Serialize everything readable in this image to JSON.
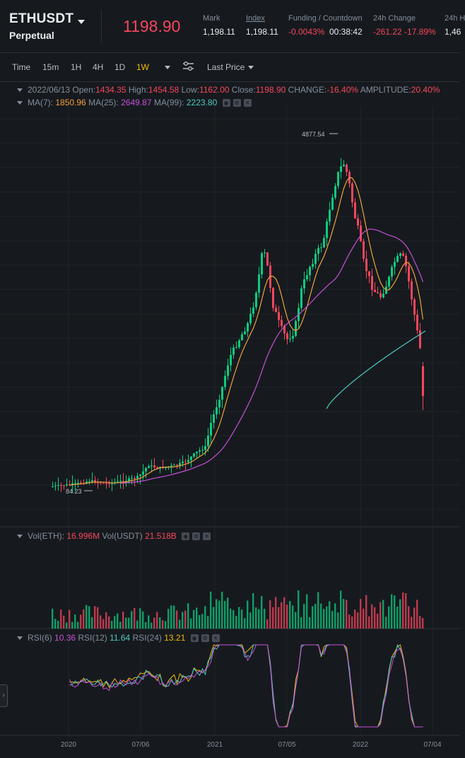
{
  "header": {
    "symbol": "ETHUSDT",
    "contract_type": "Perpetual",
    "last_price": "1198.90",
    "mark_label": "Mark",
    "mark_value": "1,198.11",
    "index_label": "Index",
    "index_value": "1,198.11",
    "funding_label": "Funding / Countdown",
    "funding_rate": "-0.0043%",
    "countdown": "00:38:42",
    "change_label": "24h Change",
    "change_value": "-261.22 -17.89%",
    "high_label": "24h H",
    "high_value": "1,46"
  },
  "toolbar": {
    "intervals": [
      "Time",
      "15m",
      "1H",
      "4H",
      "1D",
      "1W"
    ],
    "active_interval": "1W",
    "price_type": "Last Price"
  },
  "ohlc": {
    "date": "2022/06/13",
    "open_label": "Open:",
    "open": "1434.35",
    "high_label": "High:",
    "high": "1454.58",
    "low_label": "Low:",
    "low": "1162.00",
    "close_label": "Close:",
    "close": "1198.90",
    "change_label": "CHANGE:",
    "change": "-16.40%",
    "amplitude_label": "AMPLITUDE:",
    "amplitude": "20.40%"
  },
  "ma": {
    "ma7_label": "MA(7):",
    "ma7": "1850.96",
    "ma25_label": "MA(25):",
    "ma25": "2649.87",
    "ma99_label": "MA(99):",
    "ma99": "2223.80"
  },
  "volume": {
    "eth_label": "Vol(ETH):",
    "eth": "16.996M",
    "usdt_label": "Vol(USDT)",
    "usdt": "21.518B"
  },
  "rsi": {
    "rsi6_label": "RSI(6)",
    "rsi6": "10.36",
    "rsi12_label": "RSI(12)",
    "rsi12": "11.64",
    "rsi24_label": "RSI(24)",
    "rsi24": "13.21"
  },
  "chart_annotations": {
    "max_label": "4877.54",
    "min_label": "84.23"
  },
  "x_axis": {
    "ticks": [
      "2020",
      "07/06",
      "2021",
      "07/05",
      "2022",
      "07/04"
    ]
  },
  "colors": {
    "up": "#0ecb81",
    "down": "#f6465d",
    "ma7": "#f0a03c",
    "ma25": "#c850d8",
    "ma99": "#4ec9c2",
    "accent": "#f0b90b"
  }
}
